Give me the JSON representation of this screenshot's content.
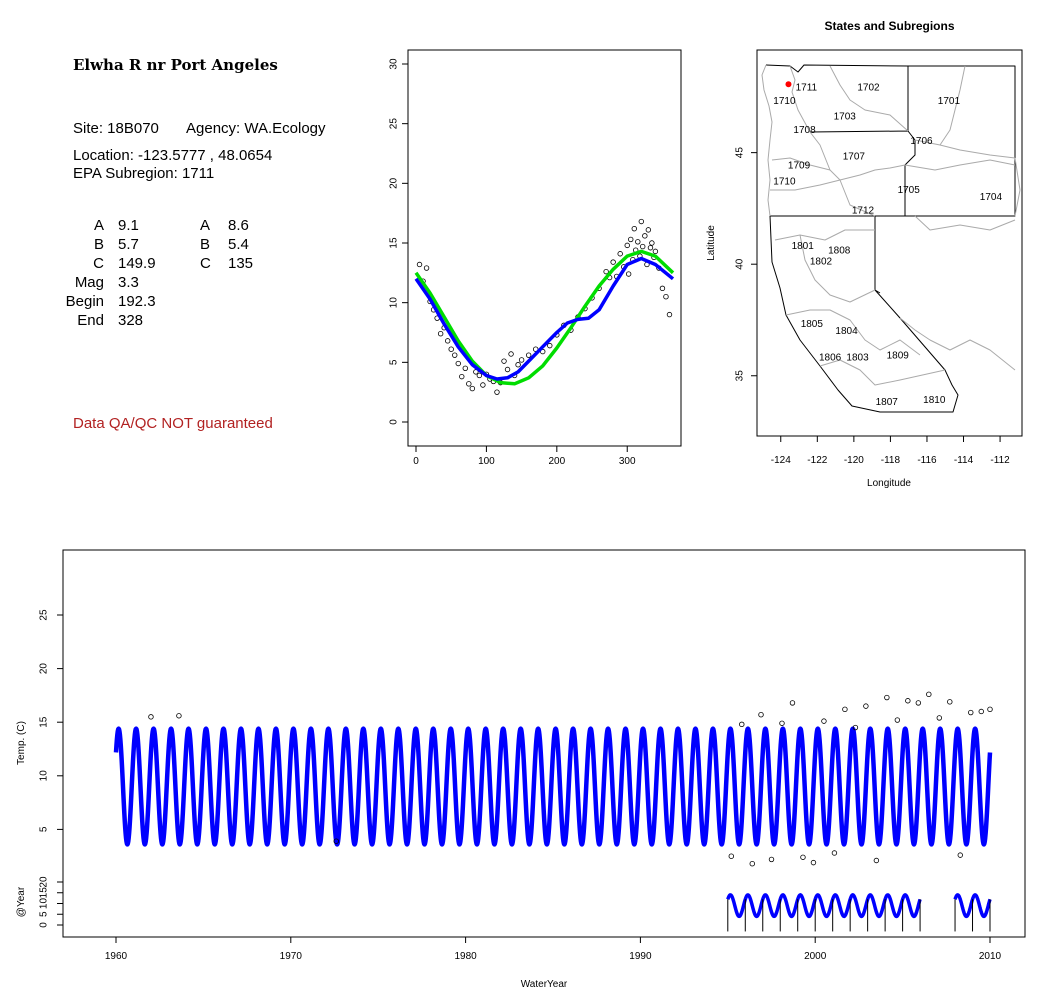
{
  "info": {
    "title": "Elwha R nr Port Angeles",
    "site_label": "Site: 18B070",
    "agency_label": "Agency: WA.Ecology",
    "location_label": "Location: -123.5777 , 48.0654",
    "subregion_label": "EPA Subregion: 1711",
    "params_left": [
      {
        "name": "A",
        "value": "9.1"
      },
      {
        "name": "B",
        "value": "5.7"
      },
      {
        "name": "C",
        "value": "149.9"
      },
      {
        "name": "Mag",
        "value": "3.3"
      },
      {
        "name": "Begin",
        "value": "192.3"
      },
      {
        "name": "End",
        "value": "328"
      }
    ],
    "params_right": [
      {
        "name": "A",
        "value": "8.6"
      },
      {
        "name": "B",
        "value": "5.4"
      },
      {
        "name": "C",
        "value": "135"
      }
    ],
    "disclaimer": "Data QA/QC NOT guaranteed",
    "disclaimer_color": "#b22222"
  },
  "map": {
    "title": "States and Subregions",
    "xlabel": "Longitude",
    "ylabel": "Latitude",
    "xticks": [
      -124,
      -122,
      -120,
      -118,
      -116,
      -114,
      -112
    ],
    "yticks": [
      35,
      40,
      45
    ],
    "xlim": [
      -125.3,
      -110.8
    ],
    "ylim": [
      32.3,
      49.6
    ],
    "site": {
      "lon": -123.5777,
      "lat": 48.0654,
      "color": "#ff0000"
    },
    "regions": [
      {
        "label": "1711",
        "lon": -122.6,
        "lat": 47.9
      },
      {
        "label": "1702",
        "lon": -119.2,
        "lat": 47.9
      },
      {
        "label": "1701",
        "lon": -114.8,
        "lat": 47.3
      },
      {
        "label": "1710",
        "lon": -123.8,
        "lat": 47.3
      },
      {
        "label": "1703",
        "lon": -120.5,
        "lat": 46.6
      },
      {
        "label": "1708",
        "lon": -122.7,
        "lat": 46.0
      },
      {
        "label": "1706",
        "lon": -116.3,
        "lat": 45.5
      },
      {
        "label": "1707",
        "lon": -120.0,
        "lat": 44.8
      },
      {
        "label": "1709",
        "lon": -123.0,
        "lat": 44.4
      },
      {
        "label": "1710",
        "lon": -123.8,
        "lat": 43.7
      },
      {
        "label": "1705",
        "lon": -117.0,
        "lat": 43.3
      },
      {
        "label": "1704",
        "lon": -112.5,
        "lat": 43.0
      },
      {
        "label": "1712",
        "lon": -119.5,
        "lat": 42.4
      },
      {
        "label": "1801",
        "lon": -122.8,
        "lat": 40.8
      },
      {
        "label": "1808",
        "lon": -120.8,
        "lat": 40.6
      },
      {
        "label": "1802",
        "lon": -121.8,
        "lat": 40.1
      },
      {
        "label": "1805",
        "lon": -122.3,
        "lat": 37.3
      },
      {
        "label": "1804",
        "lon": -120.4,
        "lat": 37.0
      },
      {
        "label": "1806",
        "lon": -121.3,
        "lat": 35.8
      },
      {
        "label": "1803",
        "lon": -119.8,
        "lat": 35.8
      },
      {
        "label": "1809",
        "lon": -117.6,
        "lat": 35.9
      },
      {
        "label": "1810",
        "lon": -115.6,
        "lat": 33.9
      },
      {
        "label": "1807",
        "lon": -118.2,
        "lat": 33.8
      }
    ]
  },
  "chart_data": [
    {
      "type": "scatter",
      "name": "seasonal",
      "xlim": [
        0,
        365
      ],
      "ylim": [
        0,
        31
      ],
      "xticks": [
        0,
        100,
        200,
        300
      ],
      "yticks": [
        0,
        5,
        10,
        15,
        20,
        25,
        30
      ],
      "grid": false,
      "point_color": "#000000",
      "series": [
        {
          "name": "",
          "color": "#00dd00",
          "style": "line",
          "x": [
            0,
            20,
            40,
            60,
            80,
            100,
            120,
            140,
            160,
            180,
            200,
            220,
            240,
            260,
            280,
            300,
            320,
            340,
            365
          ],
          "y": [
            12.5,
            10.8,
            8.8,
            6.8,
            5.1,
            3.9,
            3.3,
            3.2,
            3.7,
            4.7,
            6.2,
            7.9,
            9.7,
            11.4,
            12.8,
            13.9,
            14.3,
            13.9,
            12.5
          ]
        },
        {
          "name": "",
          "color": "#0000ff",
          "style": "line",
          "x": [
            0,
            20,
            40,
            60,
            80,
            100,
            115,
            130,
            145,
            160,
            180,
            200,
            215,
            230,
            245,
            260,
            280,
            300,
            320,
            340,
            365
          ],
          "y": [
            12.0,
            10.3,
            8.2,
            6.3,
            4.8,
            3.9,
            3.6,
            3.7,
            4.2,
            5.1,
            6.3,
            7.5,
            8.3,
            8.6,
            8.7,
            9.4,
            11.4,
            13.2,
            13.7,
            13.2,
            12.0
          ]
        }
      ],
      "observations": {
        "x": [
          5,
          10,
          15,
          20,
          25,
          30,
          35,
          40,
          45,
          50,
          55,
          60,
          65,
          70,
          75,
          80,
          85,
          90,
          95,
          100,
          105,
          110,
          115,
          120,
          125,
          130,
          135,
          140,
          145,
          150,
          160,
          170,
          180,
          190,
          200,
          210,
          220,
          230,
          240,
          250,
          260,
          270,
          275,
          280,
          285,
          290,
          295,
          300,
          302,
          305,
          308,
          310,
          312,
          315,
          318,
          320,
          322,
          325,
          328,
          330,
          333,
          335,
          338,
          340,
          345,
          350,
          355,
          360
        ],
        "y": [
          13.2,
          11.8,
          12.9,
          10.1,
          9.4,
          8.7,
          7.4,
          7.9,
          6.8,
          6.1,
          5.6,
          4.9,
          3.8,
          4.5,
          3.2,
          2.8,
          4.2,
          3.9,
          3.1,
          4.0,
          3.6,
          3.4,
          2.5,
          3.3,
          5.1,
          4.4,
          5.7,
          3.9,
          4.8,
          5.2,
          5.6,
          6.1,
          5.9,
          6.4,
          7.3,
          8.1,
          7.7,
          8.8,
          9.5,
          10.4,
          11.2,
          12.6,
          12.1,
          13.4,
          12.2,
          14.1,
          13.0,
          14.8,
          12.4,
          15.3,
          13.6,
          16.2,
          14.4,
          15.1,
          13.9,
          16.8,
          14.7,
          15.6,
          13.2,
          16.1,
          14.6,
          15.0,
          13.8,
          14.3,
          12.9,
          11.2,
          10.5,
          9.0
        ]
      }
    },
    {
      "type": "line",
      "name": "timeseries",
      "xlabel": "WaterYear",
      "ylabel": "Temp. (C)",
      "xlim": [
        1957,
        2012
      ],
      "ylim": [
        -2,
        30
      ],
      "xticks": [
        1960,
        1970,
        1980,
        1990,
        2000,
        2010
      ],
      "yticks": [
        5,
        10,
        15,
        20,
        25
      ],
      "series": [
        {
          "name": "",
          "color": "#0000ff",
          "start": 1960.0,
          "end": 2010.0,
          "mean": 9.0,
          "amplitude": 5.4
        }
      ],
      "outliers": {
        "x": [
          1962.0,
          1963.6,
          1972.6,
          1995.2,
          1995.8,
          1996.4,
          1996.9,
          1997.5,
          1998.1,
          1998.7,
          1999.3,
          1999.9,
          2000.5,
          2001.1,
          2001.7,
          2002.3,
          2002.9,
          2003.5,
          2004.1,
          2004.7,
          2005.3,
          2005.9,
          2006.5,
          2007.1,
          2007.7,
          2008.3,
          2008.9,
          2009.5,
          2010.0
        ],
        "y": [
          15.5,
          15.6,
          3.9,
          2.5,
          14.8,
          1.8,
          15.7,
          2.2,
          14.9,
          16.8,
          2.4,
          1.9,
          15.1,
          2.8,
          16.2,
          14.5,
          16.5,
          2.1,
          17.3,
          15.2,
          17.0,
          16.8,
          17.6,
          15.4,
          16.9,
          2.6,
          15.9,
          16.0,
          16.2
        ]
      }
    },
    {
      "type": "line",
      "name": "per-year",
      "ylabel": "@Year",
      "ylim": [
        -4,
        25
      ],
      "yticks": [
        0,
        5,
        10,
        15,
        20
      ],
      "segments": [
        [
          1995,
          2006
        ],
        [
          2008,
          2010
        ]
      ],
      "color": "#0000ff"
    }
  ]
}
